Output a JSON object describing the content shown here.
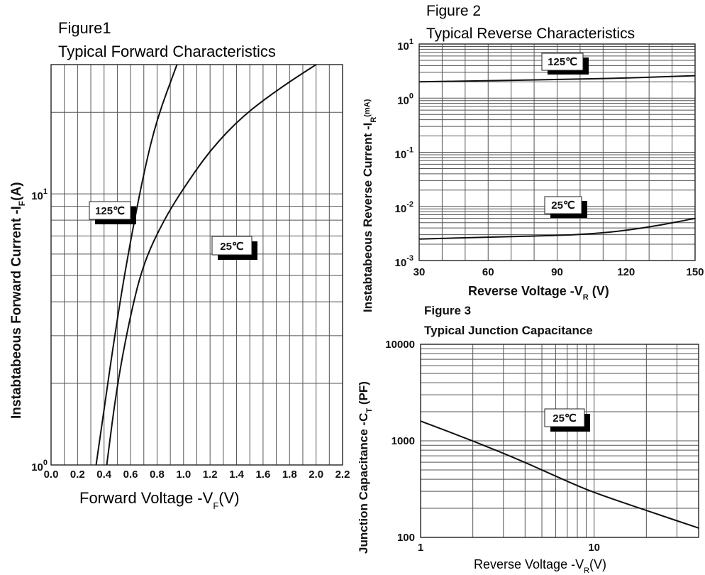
{
  "chart_data": [
    {
      "id": "fig1",
      "type": "line",
      "figure_label": "Figure1",
      "title": "Typical Forward Characteristics",
      "xlabel": "Forward Voltage -V",
      "xlabel_sub": "F",
      "xlabel_unit": "(V)",
      "ylabel": "Instabtabeous Forward Current -I",
      "ylabel_sub": "F",
      "ylabel_unit": "(A)",
      "x_scale": "linear",
      "y_scale": "log",
      "xlim": [
        0,
        2.2
      ],
      "ylim": [
        1,
        30
      ],
      "x_ticks": [
        "0.0",
        "0.2",
        "0.4",
        "0.6",
        "0.8",
        "1.0",
        "1.2",
        "1.4",
        "1.6",
        "1.8",
        "2.0",
        "2.2"
      ],
      "y_tick_labels": [
        {
          "base": "10",
          "exp": "0"
        },
        {
          "base": "10",
          "exp": "1"
        }
      ],
      "grid": true,
      "series": [
        {
          "name": "125℃",
          "x": [
            0.34,
            0.4,
            0.48,
            0.58,
            0.7,
            0.8,
            0.95
          ],
          "y": [
            1.0,
            1.6,
            3.0,
            6.0,
            12.0,
            19.0,
            30.0
          ]
        },
        {
          "name": "25℃",
          "x": [
            0.42,
            0.5,
            0.6,
            0.7,
            0.85,
            1.0,
            1.2,
            1.45,
            1.75,
            2.0
          ],
          "y": [
            1.0,
            2.0,
            3.6,
            5.6,
            8.0,
            10.5,
            14.5,
            19.5,
            25.0,
            30.0
          ]
        }
      ]
    },
    {
      "id": "fig2",
      "type": "line",
      "figure_label": "Figure 2",
      "title": "Typical Reverse Characteristics",
      "xlabel": "Reverse  Voltage -V",
      "xlabel_sub": "R",
      "xlabel_unit": " (V)",
      "ylabel": "Instabtabeous Reverse Current -I",
      "ylabel_sub": "R",
      "ylabel_unit": "(mA)",
      "x_scale": "linear",
      "y_scale": "log",
      "xlim": [
        30,
        150
      ],
      "ylim": [
        0.001,
        10
      ],
      "x_ticks": [
        "30",
        "60",
        "90",
        "120",
        "150"
      ],
      "y_tick_labels": [
        {
          "base": "10",
          "exp": "-3"
        },
        {
          "base": "10",
          "exp": "-2"
        },
        {
          "base": "10",
          "exp": "-1"
        },
        {
          "base": "10",
          "exp": "0"
        },
        {
          "base": "10",
          "exp": "1"
        }
      ],
      "grid": true,
      "series": [
        {
          "name": "125℃",
          "x": [
            30,
            60,
            90,
            120,
            150
          ],
          "y": [
            2.0,
            2.1,
            2.2,
            2.35,
            2.6
          ]
        },
        {
          "name": "25℃",
          "x": [
            30,
            60,
            90,
            105,
            120,
            135,
            150
          ],
          "y": [
            0.0025,
            0.0027,
            0.0029,
            0.0031,
            0.0036,
            0.0045,
            0.006
          ]
        }
      ]
    },
    {
      "id": "fig3",
      "type": "line",
      "figure_label": "Figure 3",
      "title": "Typical Junction Capacitance",
      "xlabel": "Reverse Voltage -V",
      "xlabel_sub": "R",
      "xlabel_unit": "(V)",
      "ylabel": "Junction Capacitance -C",
      "ylabel_sub": "T",
      "ylabel_unit": " (PF)",
      "x_scale": "log",
      "y_scale": "log",
      "xlim": [
        1,
        40
      ],
      "ylim": [
        100,
        10000
      ],
      "x_ticks": [
        "1",
        "10"
      ],
      "y_ticks": [
        "100",
        "1000",
        "10000"
      ],
      "grid": true,
      "series": [
        {
          "name": "25℃",
          "x": [
            1,
            2,
            4,
            7,
            10,
            20,
            40
          ],
          "y": [
            1600,
            1000,
            600,
            380,
            290,
            190,
            125
          ]
        }
      ]
    }
  ],
  "labels": {
    "fig1_hot": "125℃",
    "fig1_room": "25℃",
    "fig2_hot": "125℃",
    "fig2_room": "25℃",
    "fig3_room": "25℃"
  }
}
